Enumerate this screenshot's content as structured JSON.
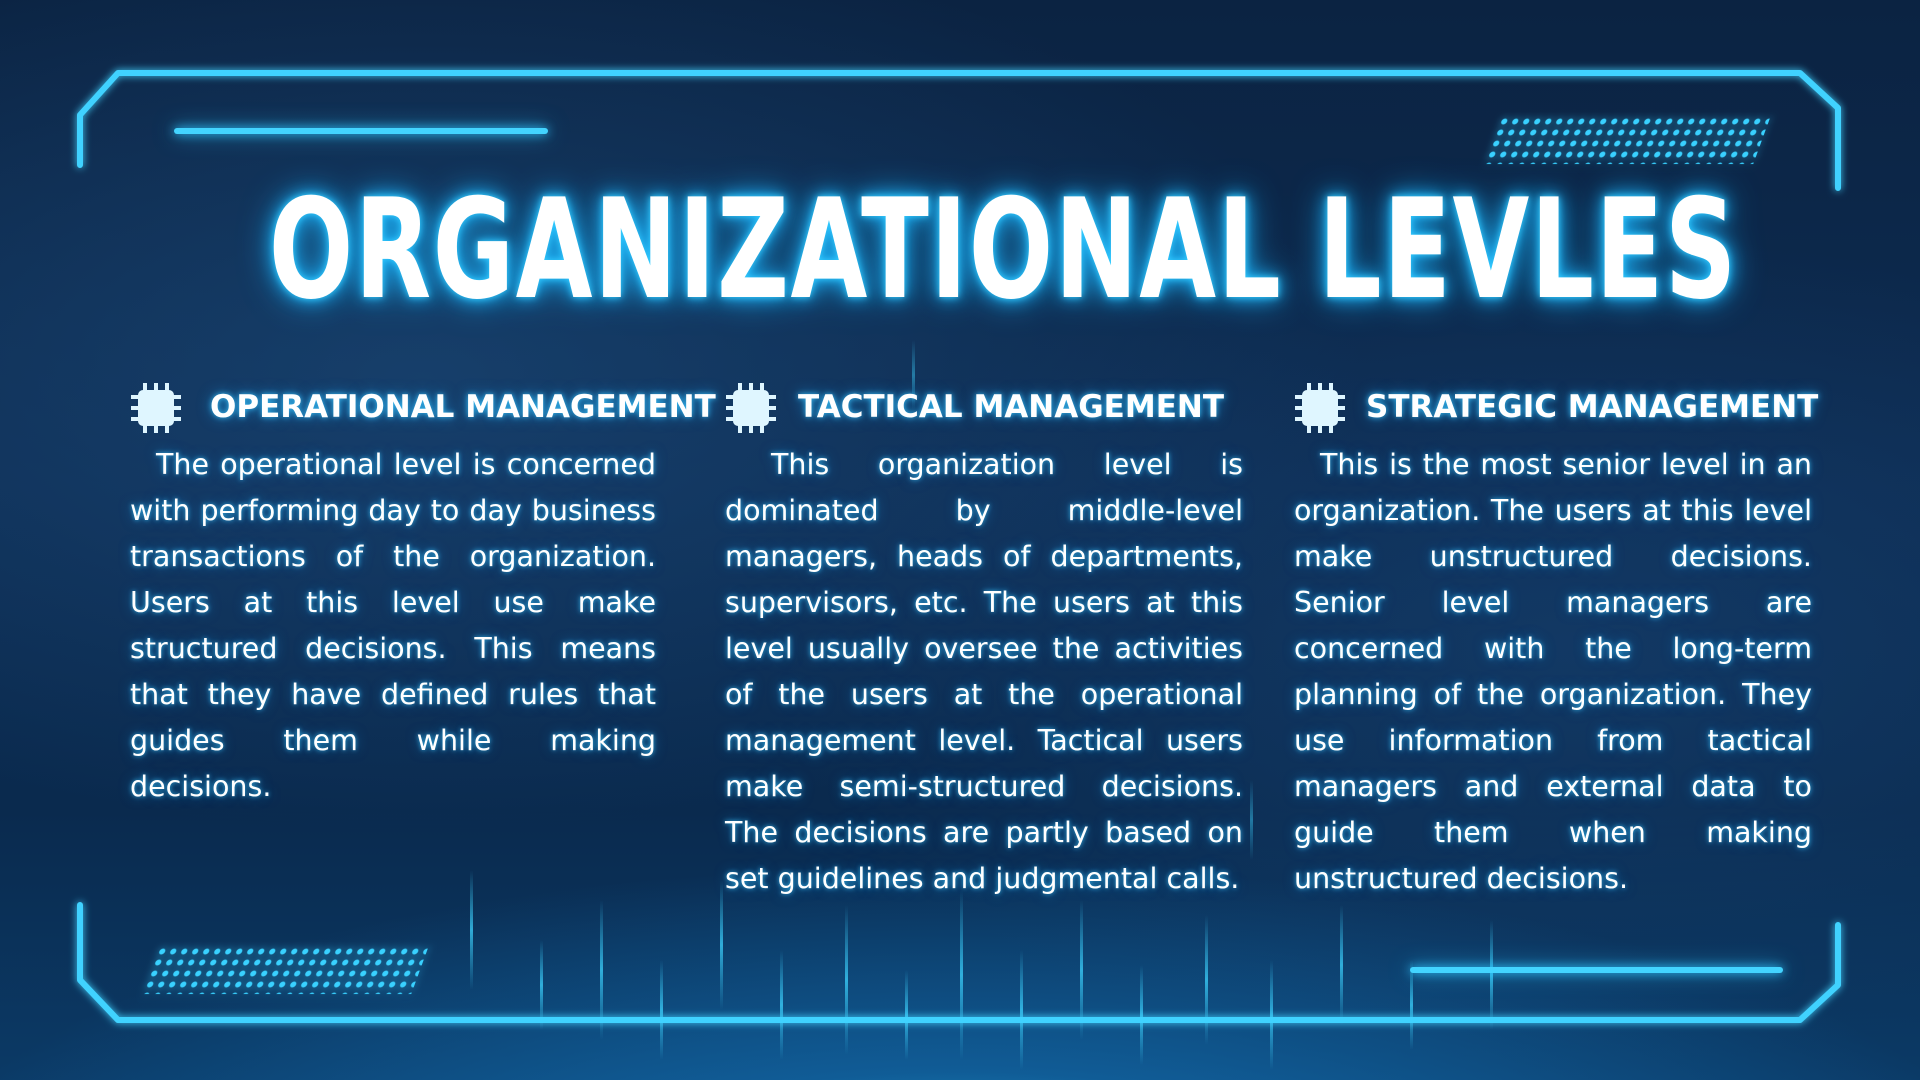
{
  "slide": {
    "title": "ORGANIZATIONAL LEVLES",
    "accent_color": "#43d4ff",
    "background_color": "#0b2342",
    "sections": [
      {
        "icon": "chip-icon",
        "heading": "OPERATIONAL MANAGEMENT",
        "body": "The operational level is concerned with performing day to day business transactions of the organization. Users at this level use make structured decisions. This means that they have defined rules that guides them while making decisions."
      },
      {
        "icon": "chip-icon",
        "heading": "TACTICAL MANAGEMENT",
        "body": "This organization level is dominated by middle-level managers, heads of departments, supervisors, etc. The users at this level usually oversee the activities of the users at the operational management level. Tactical users make semi-structured decisions. The decisions are partly based on set guidelines and judgmental calls."
      },
      {
        "icon": "chip-icon",
        "heading": "STRATEGIC MANAGEMENT",
        "body": "This is the most senior level in an organization. The users at this level make unstructured decisions. Senior level managers are concerned with the long-term planning of the organization. They use information from tactical managers and external data to guide them when making unstructured decisions."
      }
    ]
  }
}
